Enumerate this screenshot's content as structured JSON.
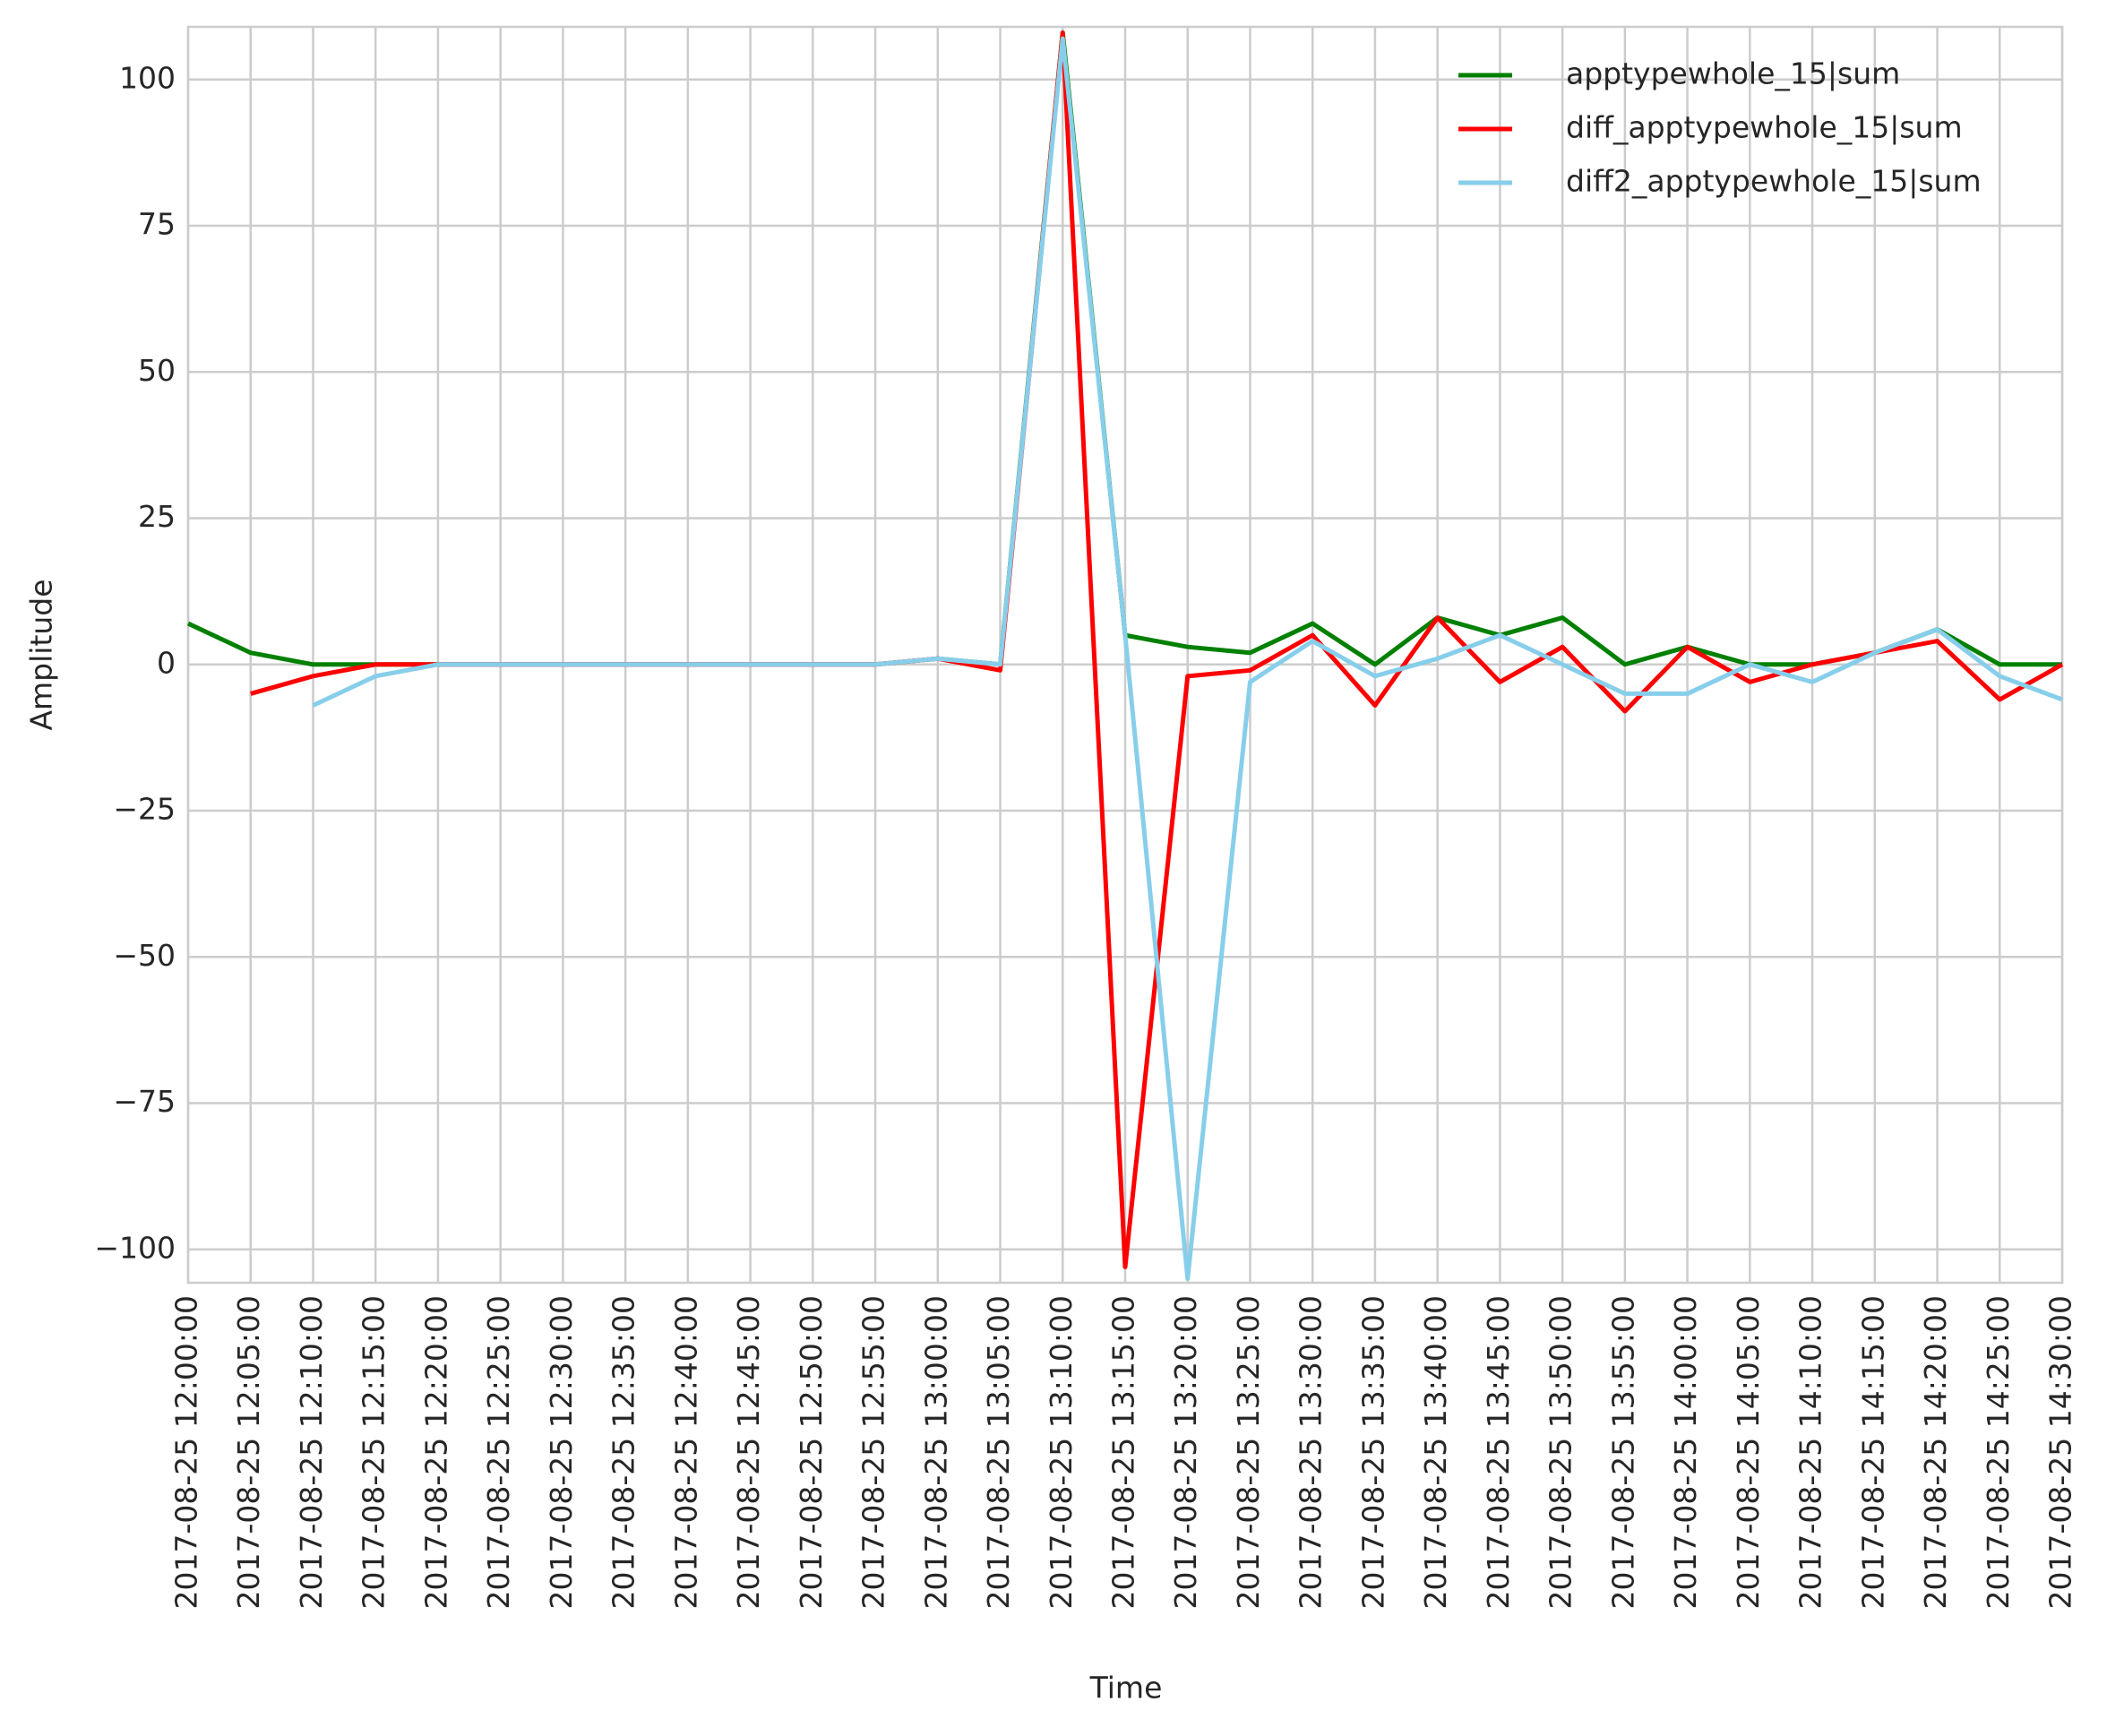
{
  "chart_data": {
    "type": "line",
    "x_label": "Time",
    "y_label": "Amplitude",
    "categories": [
      "2017-08-25 12:00:00",
      "2017-08-25 12:05:00",
      "2017-08-25 12:10:00",
      "2017-08-25 12:15:00",
      "2017-08-25 12:20:00",
      "2017-08-25 12:25:00",
      "2017-08-25 12:30:00",
      "2017-08-25 12:35:00",
      "2017-08-25 12:40:00",
      "2017-08-25 12:45:00",
      "2017-08-25 12:50:00",
      "2017-08-25 12:55:00",
      "2017-08-25 13:00:00",
      "2017-08-25 13:05:00",
      "2017-08-25 13:10:00",
      "2017-08-25 13:15:00",
      "2017-08-25 13:20:00",
      "2017-08-25 13:25:00",
      "2017-08-25 13:30:00",
      "2017-08-25 13:35:00",
      "2017-08-25 13:40:00",
      "2017-08-25 13:45:00",
      "2017-08-25 13:50:00",
      "2017-08-25 13:55:00",
      "2017-08-25 14:00:00",
      "2017-08-25 14:05:00",
      "2017-08-25 14:10:00",
      "2017-08-25 14:15:00",
      "2017-08-25 14:20:00",
      "2017-08-25 14:25:00",
      "2017-08-25 14:30:00"
    ],
    "series": [
      {
        "name": "apptypewhole_15|sum",
        "color": "#008000",
        "values": [
          7,
          2,
          0,
          0,
          0,
          0,
          0,
          0,
          0,
          0,
          0,
          0,
          1,
          0,
          108,
          5,
          3,
          2,
          7,
          0,
          8,
          5,
          8,
          0,
          3,
          0,
          0,
          2,
          6,
          0,
          0
        ]
      },
      {
        "name": "diff_apptypewhole_15|sum",
        "color": "#ff0000",
        "values": [
          null,
          -5,
          -2,
          0,
          0,
          0,
          0,
          0,
          0,
          0,
          0,
          0,
          1,
          -1,
          108,
          -103,
          -2,
          -1,
          5,
          -7,
          8,
          -3,
          3,
          -8,
          3,
          -3,
          0,
          2,
          4,
          -6,
          0
        ]
      },
      {
        "name": "diff2_apptypewhole_15|sum",
        "color": "#87ceeb",
        "values": [
          null,
          null,
          -7,
          -2,
          0,
          0,
          0,
          0,
          0,
          0,
          0,
          0,
          1,
          0,
          107,
          5,
          -105,
          -3,
          4,
          -2,
          1,
          5,
          0,
          -5,
          -5,
          0,
          -3,
          2,
          6,
          -2,
          -6
        ]
      }
    ],
    "ylim": [
      -105.7,
      109
    ],
    "yticks": [
      {
        "value": -100,
        "label": "−100"
      },
      {
        "value": -75,
        "label": "−75"
      },
      {
        "value": -50,
        "label": "−50"
      },
      {
        "value": -25,
        "label": "−25"
      },
      0,
      25,
      50,
      75,
      100
    ],
    "grid": true,
    "legend": "upper right"
  }
}
